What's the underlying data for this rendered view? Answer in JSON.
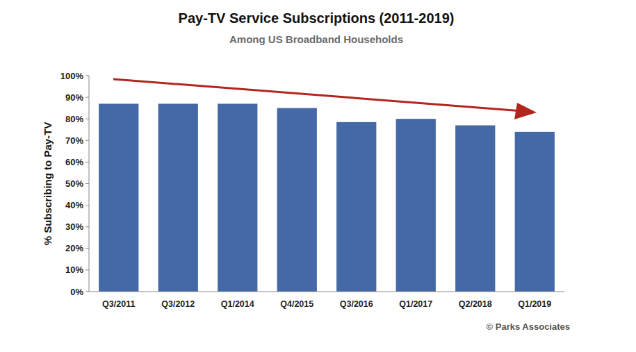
{
  "chart_data": {
    "type": "bar",
    "title": "Pay-TV Service Subscriptions (2011-2019)",
    "subtitle": "Among US Broadband Households",
    "y_label": "% Subscribing to Pay-TV",
    "source": "© Parks Associates",
    "categories": [
      "Q3/2011",
      "Q3/2012",
      "Q1/2014",
      "Q4/2015",
      "Q3/2016",
      "Q1/2017",
      "Q2/2018",
      "Q1/2019"
    ],
    "values": [
      87,
      87,
      87,
      85,
      78.5,
      80,
      77,
      74
    ],
    "color": "#4569a6",
    "ylim": [
      0,
      100
    ],
    "yticks": [
      {
        "value": 0,
        "label": "0%"
      },
      {
        "value": 10,
        "label": "10%"
      },
      {
        "value": 20,
        "label": "20%"
      },
      {
        "value": 30,
        "label": "30%"
      },
      {
        "value": 40,
        "label": "40%"
      },
      {
        "value": 50,
        "label": "50%"
      },
      {
        "value": 60,
        "label": "60%"
      },
      {
        "value": 70,
        "label": "70%"
      },
      {
        "value": 80,
        "label": "80%"
      },
      {
        "value": 90,
        "label": "90%"
      },
      {
        "value": 100,
        "label": "100%"
      }
    ],
    "grid": false
  }
}
